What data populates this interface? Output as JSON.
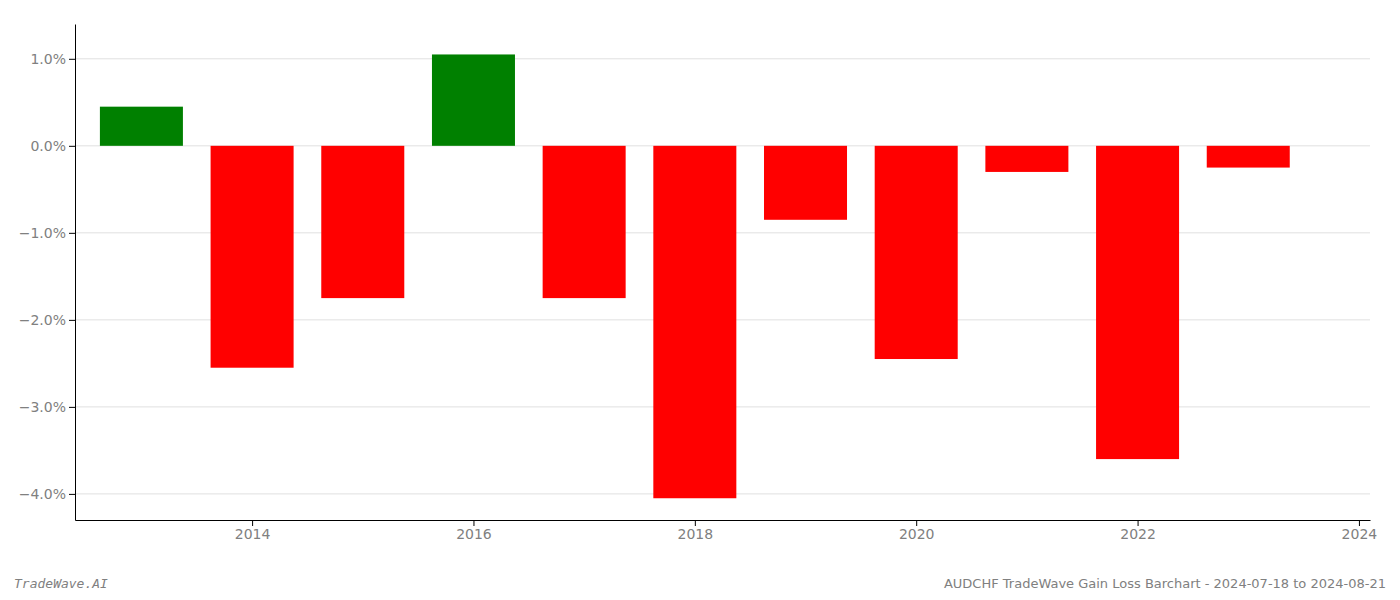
{
  "chart_data": {
    "type": "bar",
    "x": [
      2013,
      2014,
      2015,
      2016,
      2017,
      2018,
      2019,
      2020,
      2021,
      2022,
      2023
    ],
    "values": [
      0.45,
      -2.55,
      -1.75,
      1.05,
      -1.75,
      -4.05,
      -0.85,
      -2.45,
      -0.3,
      -3.6,
      -0.25
    ],
    "colors": [
      "#008000",
      "#ff0000",
      "#ff0000",
      "#008000",
      "#ff0000",
      "#ff0000",
      "#ff0000",
      "#ff0000",
      "#ff0000",
      "#ff0000",
      "#ff0000"
    ],
    "xlim": [
      2012.4,
      2024.1
    ],
    "xticks": [
      2014,
      2016,
      2018,
      2020,
      2022,
      2024
    ],
    "ylim": [
      -4.3,
      1.4
    ],
    "yticks": [
      {
        "value": 1.0,
        "label": "1.0%"
      },
      {
        "value": 0.0,
        "label": "0.0%"
      },
      {
        "value": -1.0,
        "label": "−1.0%"
      },
      {
        "value": -2.0,
        "label": "−2.0%"
      },
      {
        "value": -3.0,
        "label": "−3.0%"
      },
      {
        "value": -4.0,
        "label": "−4.0%"
      }
    ],
    "grid": true,
    "annotations": [
      "TradeWave.AI",
      "AUDCHF TradeWave Gain Loss Barchart - 2024-07-18 to 2024-08-21"
    ]
  }
}
